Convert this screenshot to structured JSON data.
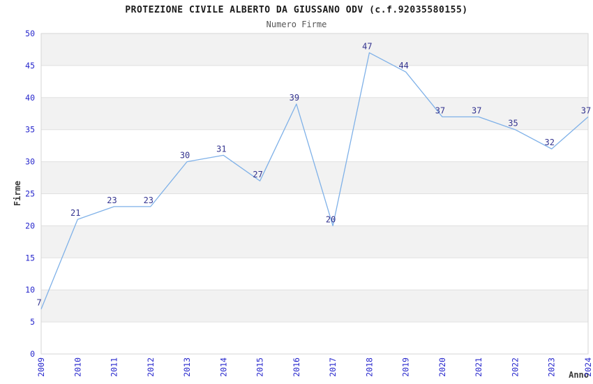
{
  "chart_data": {
    "type": "line",
    "title": "PROTEZIONE CIVILE ALBERTO DA GIUSSANO ODV (c.f.92035580155)",
    "subtitle": "Numero Firme",
    "xlabel": "Anno",
    "ylabel": "Firme",
    "categories": [
      "2009",
      "2010",
      "2011",
      "2012",
      "2013",
      "2014",
      "2015",
      "2016",
      "2017",
      "2018",
      "2019",
      "2020",
      "2021",
      "2022",
      "2023",
      "2024"
    ],
    "values": [
      7,
      21,
      23,
      23,
      30,
      31,
      27,
      39,
      20,
      47,
      44,
      37,
      37,
      35,
      32,
      37
    ],
    "yticks": [
      0,
      5,
      10,
      15,
      20,
      25,
      30,
      35,
      40,
      45,
      50
    ],
    "ylim": [
      0,
      50
    ],
    "grid": true,
    "legend_position": "none",
    "band_pattern": "alternating gray/white horizontal bands every 5 units, gray on 5-10,15-20,25-30,35-40,45-50",
    "x_tick_rotation": -90,
    "colors": {
      "line": "#7FB1E8",
      "data_label": "#33338F",
      "tick_label": "#2626CC",
      "axis_title": "#3a3a3a",
      "title": "#1a1a1a",
      "subtitle": "#555555",
      "band_fill": "#F2F2F2",
      "grid_line": "#E0E0E0",
      "plot_border": "#D6D6D6",
      "background": "#FFFFFF"
    }
  }
}
